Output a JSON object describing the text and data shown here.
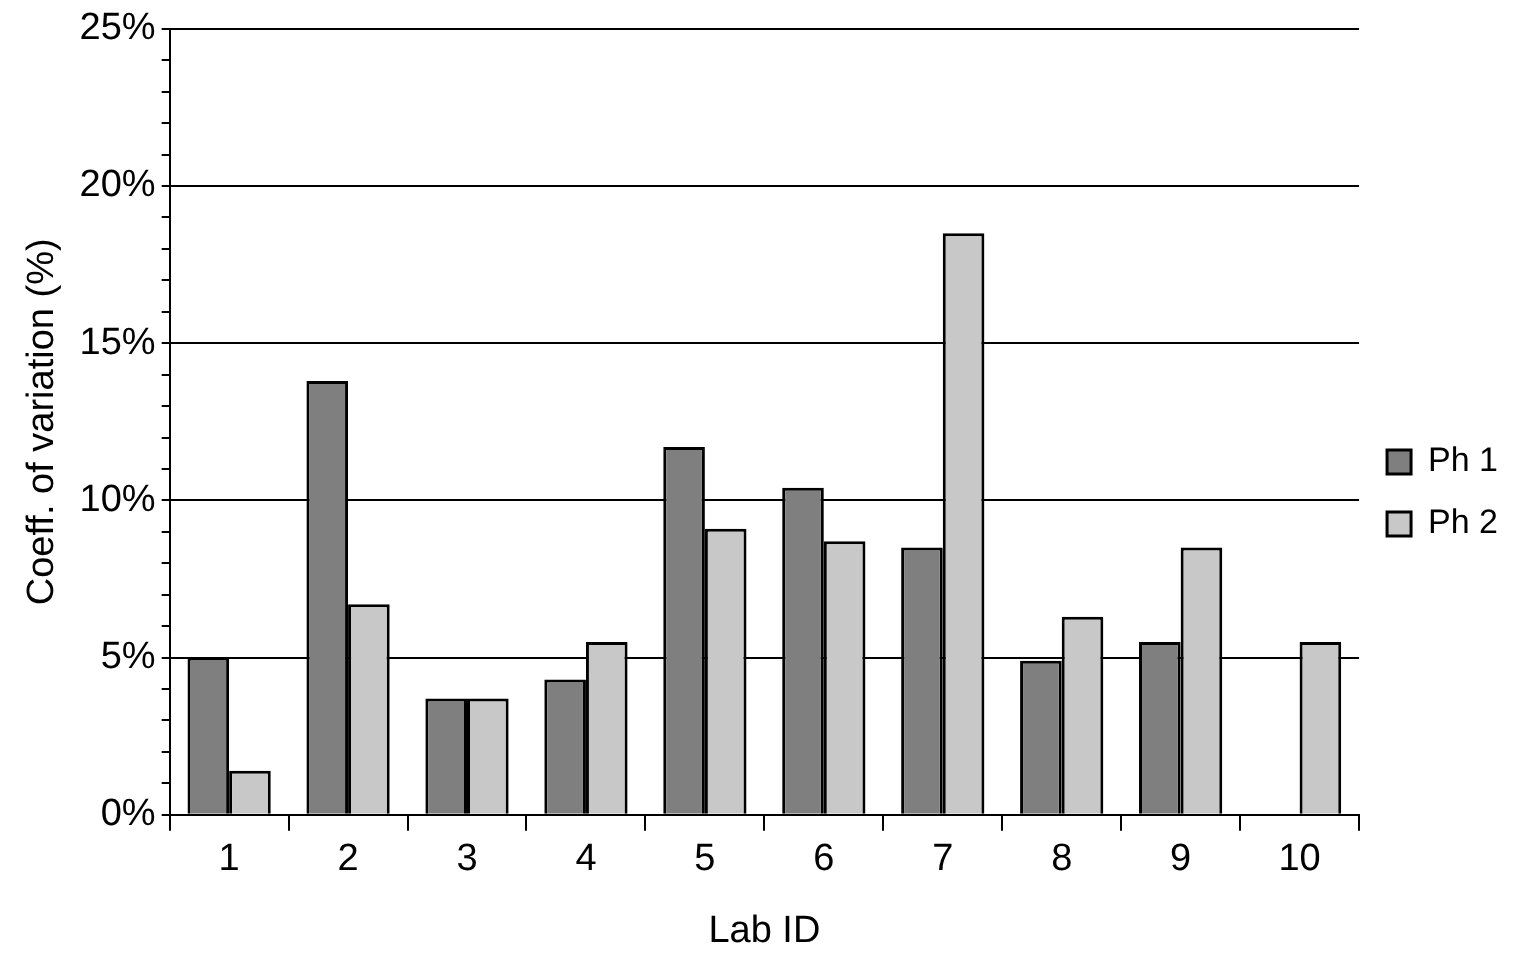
{
  "chart_data": {
    "type": "bar",
    "xlabel": "Lab ID",
    "ylabel": "Coeff. of variation (%)",
    "categories": [
      "1",
      "2",
      "3",
      "4",
      "5",
      "6",
      "7",
      "8",
      "9",
      "10"
    ],
    "series": [
      {
        "name": "Ph 1",
        "color": "#7f7f7f",
        "values": [
          5.0,
          13.8,
          3.7,
          4.3,
          11.7,
          10.4,
          8.5,
          4.9,
          5.5,
          null
        ]
      },
      {
        "name": "Ph 2",
        "color": "#c8c8c8",
        "values": [
          1.4,
          6.7,
          3.7,
          5.5,
          9.1,
          8.7,
          18.5,
          6.3,
          8.5,
          5.5
        ]
      }
    ],
    "ylim": [
      0,
      25
    ],
    "yticks": [
      {
        "value": 0,
        "label": "0%"
      },
      {
        "value": 1,
        "label": null
      },
      {
        "value": 2,
        "label": null
      },
      {
        "value": 3,
        "label": null
      },
      {
        "value": 4,
        "label": null
      },
      {
        "value": 5,
        "label": "5%"
      },
      {
        "value": 6,
        "label": null
      },
      {
        "value": 7,
        "label": null
      },
      {
        "value": 8,
        "label": null
      },
      {
        "value": 9,
        "label": null
      },
      {
        "value": 10,
        "label": "10%"
      },
      {
        "value": 11,
        "label": null
      },
      {
        "value": 12,
        "label": null
      },
      {
        "value": 13,
        "label": null
      },
      {
        "value": 14,
        "label": null
      },
      {
        "value": 15,
        "label": "15%"
      },
      {
        "value": 16,
        "label": null
      },
      {
        "value": 17,
        "label": null
      },
      {
        "value": 18,
        "label": null
      },
      {
        "value": 19,
        "label": null
      },
      {
        "value": 20,
        "label": "20%"
      },
      {
        "value": 21,
        "label": null
      },
      {
        "value": 22,
        "label": null
      },
      {
        "value": 23,
        "label": null
      },
      {
        "value": 24,
        "label": null
      },
      {
        "value": 25,
        "label": "25%"
      }
    ],
    "grid": "y",
    "legend": "right"
  }
}
